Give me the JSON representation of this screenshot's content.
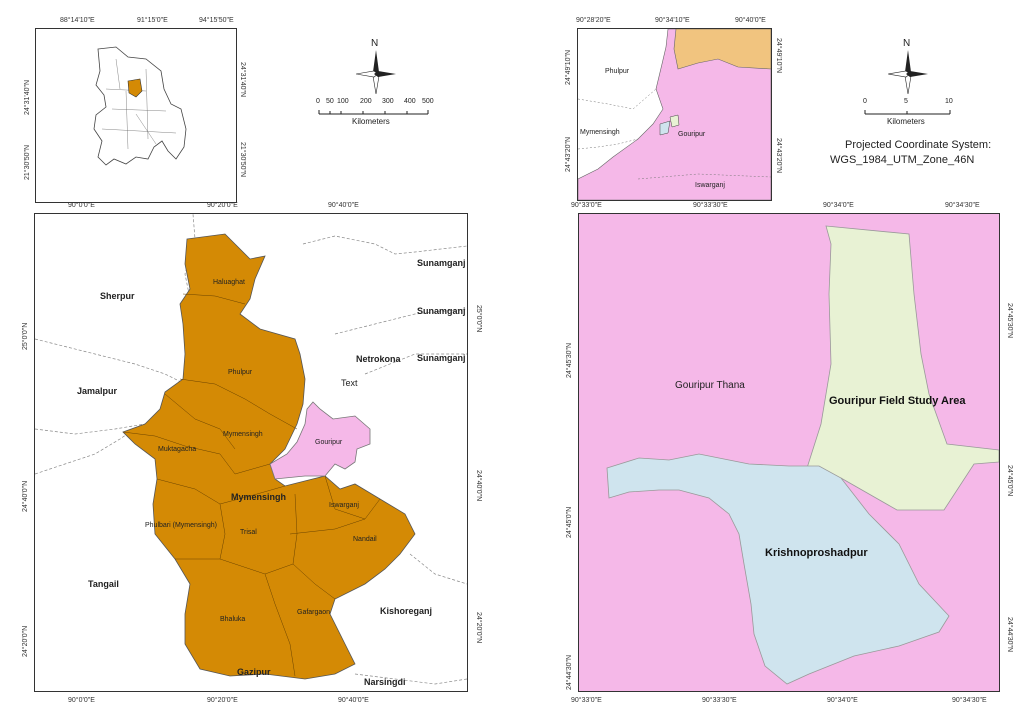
{
  "left_map": {
    "inset": {
      "top_ticks": [
        "88°14'10\"E",
        "91°15'0\"E",
        "94°15'50\"E"
      ],
      "left_ticks": [
        "24°31'40\"N",
        "21°30'50\"N"
      ],
      "right_ticks": [
        "24°31'40\"N",
        "21°30'50\"N"
      ]
    },
    "north_label": "N",
    "scale": {
      "ticks": [
        "0",
        "50",
        "100",
        "200",
        "300",
        "400",
        "500"
      ],
      "unit": "Kilometers"
    },
    "main": {
      "top_ticks": [
        "90°0'0\"E",
        "90°20'0\"E",
        "90°40'0\"E"
      ],
      "bottom_ticks": [
        "90°0'0\"E",
        "90°20'0\"E",
        "90°40'0\"E"
      ],
      "left_ticks": [
        "25°0'0\"N",
        "24°40'0\"N",
        "24°20'0\"N"
      ],
      "right_ticks": [
        "25°0'0\"N",
        "24°40'0\"N",
        "24°20'0\"N"
      ],
      "districts": [
        "Sherpur",
        "Jamalpur",
        "Tangail",
        "Gazipur",
        "Narsingdi",
        "Kishoreganj",
        "Netrokona",
        "Sunamganj",
        "Sunamganj",
        "Sunamganj"
      ],
      "upazilas": [
        "Haluaghat",
        "Phulpur",
        "Mymensingh",
        "Muktagacha",
        "Phulbari (Mymensingh)",
        "Trisal",
        "Iswarganj",
        "Nandail",
        "Bhaluka",
        "Gafargaon",
        "Gouripur"
      ],
      "center_label": "Mymensingh",
      "text_placeholder": "Text"
    }
  },
  "right_map": {
    "inset": {
      "top_ticks": [
        "90°28'20\"E",
        "90°34'10\"E",
        "90°40'0\"E"
      ],
      "left_ticks": [
        "24°49'10\"N",
        "24°43'20\"N"
      ],
      "right_ticks": [
        "24°49'10\"N",
        "24°43'20\"N"
      ],
      "labels": [
        "Phulpur",
        "Mymensingh",
        "Gouripur",
        "Iswarganj"
      ]
    },
    "north_label": "N",
    "scale": {
      "ticks": [
        "0",
        "5",
        "10"
      ],
      "unit": "Kilometers"
    },
    "projection": {
      "line1": "Projected Coordinate System:",
      "line2": "WGS_1984_UTM_Zone_46N"
    },
    "main": {
      "top_ticks": [
        "90°33'0\"E",
        "90°33'30\"E",
        "90°34'0\"E",
        "90°34'30\"E"
      ],
      "bottom_ticks": [
        "90°33'0\"E",
        "90°33'30\"E",
        "90°34'0\"E",
        "90°34'30\"E"
      ],
      "left_ticks": [
        "24°45'30\"N",
        "24°45'0\"N",
        "24°44'30\"N"
      ],
      "right_ticks": [
        "24°45'30\"N",
        "24°45'0\"N",
        "24°44'30\"N"
      ],
      "labels": {
        "thana": "Gouripur Thana",
        "study_area": "Gouripur Field Study Area",
        "krishno": "Krishnoproshadpur"
      }
    }
  },
  "colors": {
    "mymensingh_fill": "#d48a05",
    "gouripur_fill": "#f5b8e8",
    "study_area_fill": "#e8f2d4",
    "krishno_fill": "#cfe4ee",
    "inset_orange": "#f1c47f"
  }
}
